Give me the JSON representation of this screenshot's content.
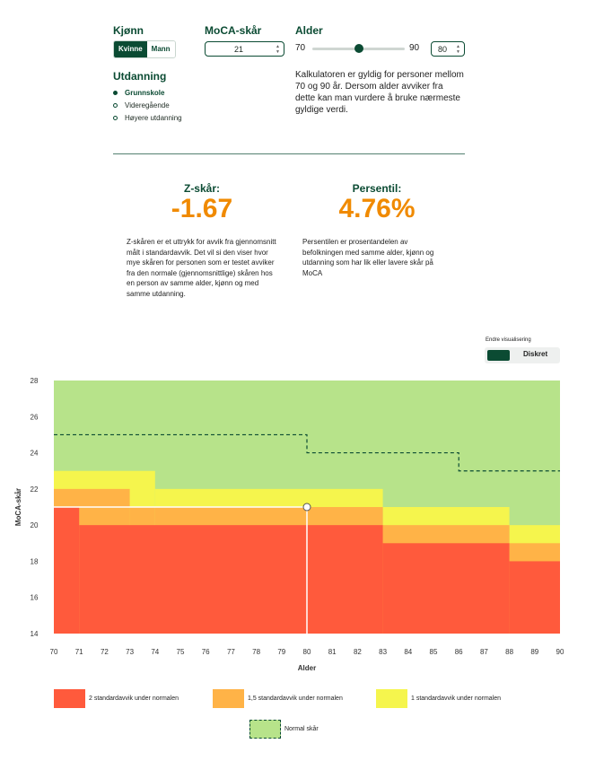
{
  "gender": {
    "label": "Kjønn",
    "options": [
      "Kvinne",
      "Mann"
    ],
    "selected": "Kvinne"
  },
  "moca": {
    "label": "MoCA-skår",
    "value": "21"
  },
  "age": {
    "label": "Alder",
    "min_label": "70",
    "max_label": "90",
    "value": "80",
    "slider_value": 80
  },
  "education": {
    "label": "Utdanning",
    "options": [
      "Grunnskole",
      "Videregående",
      "Høyere utdanning"
    ],
    "selected": "Grunnskole"
  },
  "validity_note": "Kalkulatoren er gyldig for personer mellom 70 og 90 år. Dersom alder avviker fra dette kan man vurdere å bruke nærmeste gyldige verdi.",
  "zscore": {
    "label": "Z-skår:",
    "value": "-1.67",
    "description": "Z-skåren er et uttrykk for avvik fra gjennomsnitt målt i standardavvik. Det vil si den viser hvor mye skåren for personen som er testet avviker fra den normale (gjennomsnittlige) skåren hos en person av samme alder, kjønn og med samme utdanning."
  },
  "percentile": {
    "label": "Persentil:",
    "value": "4.76%",
    "description": "Persentilen er prosentandelen av befolkningen med samme alder, kjønn og utdanning som har lik eller lavere skår på MoCA"
  },
  "visualization": {
    "label": "Endre visualisering",
    "option_label": "Diskret"
  },
  "colors": {
    "brand": "#0b4b33",
    "accent": "#f08a00",
    "red": "#ff5a3c",
    "orange": "#ffb347",
    "yellow": "#f5f54d",
    "green": "#b7e38a"
  },
  "chart_data": {
    "type": "area",
    "xlabel": "Alder",
    "ylabel": "MoCA-skår",
    "xlim": [
      70,
      90
    ],
    "ylim": [
      14,
      28
    ],
    "x_ticks": [
      70,
      71,
      72,
      73,
      74,
      75,
      76,
      77,
      78,
      79,
      80,
      81,
      82,
      83,
      84,
      85,
      86,
      87,
      88,
      89,
      90
    ],
    "y_ticks": [
      14,
      16,
      18,
      20,
      22,
      24,
      26,
      28
    ],
    "bands": [
      {
        "name": "2 standardavvik under normalen",
        "color": "#ff5a3c",
        "upper": [
          [
            70,
            71,
            21
          ],
          [
            71,
            83,
            20
          ],
          [
            83,
            88,
            19
          ],
          [
            88,
            90,
            18
          ]
        ]
      },
      {
        "name": "1,5 standardavvik under normalen",
        "color": "#ffb347",
        "upper": [
          [
            70,
            73,
            22
          ],
          [
            73,
            74,
            21
          ],
          [
            74,
            83,
            21
          ],
          [
            83,
            88,
            20
          ],
          [
            88,
            90,
            19
          ]
        ]
      },
      {
        "name": "1 standardavvik under normalen",
        "color": "#f5f54d",
        "upper": [
          [
            70,
            74,
            23
          ],
          [
            74,
            83,
            22
          ],
          [
            83,
            88,
            21
          ],
          [
            88,
            90,
            20
          ]
        ]
      },
      {
        "name": "Normal skår",
        "color": "#b7e38a",
        "upper": [
          [
            70,
            90,
            28
          ]
        ]
      }
    ],
    "normal_line": [
      [
        70,
        80,
        25
      ],
      [
        80,
        86,
        24
      ],
      [
        86,
        90,
        23
      ]
    ],
    "marker": {
      "x": 80,
      "y": 21
    }
  }
}
